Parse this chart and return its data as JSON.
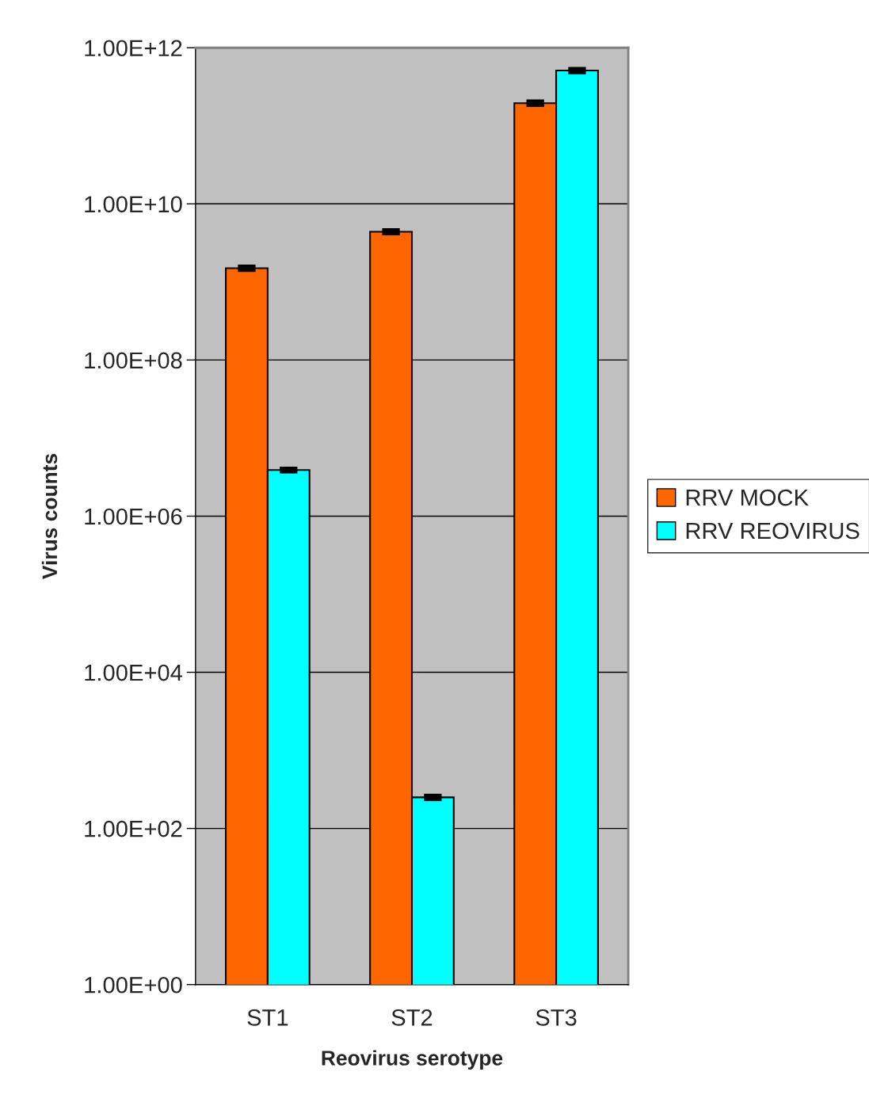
{
  "chart_data": {
    "type": "bar",
    "xlabel": "Reovirus serotype",
    "ylabel": "Virus counts",
    "categories": [
      "ST1",
      "ST2",
      "ST3"
    ],
    "series": [
      {
        "name": "RRV MOCK",
        "color": "#ff6600",
        "values": [
          1500000000,
          4400000000,
          195000000000
        ],
        "errors": [
          90000000,
          250000000,
          12000000000
        ]
      },
      {
        "name": "RRV REOVIRUS",
        "color": "#00ffff",
        "values": [
          3900000,
          250,
          510000000000
        ],
        "errors": [
          200000,
          15,
          30000000000
        ]
      }
    ],
    "log": true,
    "ylim": [
      1,
      1000000000000
    ],
    "yticks": [
      {
        "value": 1,
        "label": "1.00E+00"
      },
      {
        "value": 100,
        "label": "1.00E+02"
      },
      {
        "value": 10000,
        "label": "1.00E+04"
      },
      {
        "value": 1000000,
        "label": "1.00E+06"
      },
      {
        "value": 100000000,
        "label": "1.00E+08"
      },
      {
        "value": 10000000000,
        "label": "1.00E+10"
      },
      {
        "value": 1000000000000,
        "label": "1.00E+12"
      }
    ],
    "grid": "y",
    "legend": "right"
  }
}
